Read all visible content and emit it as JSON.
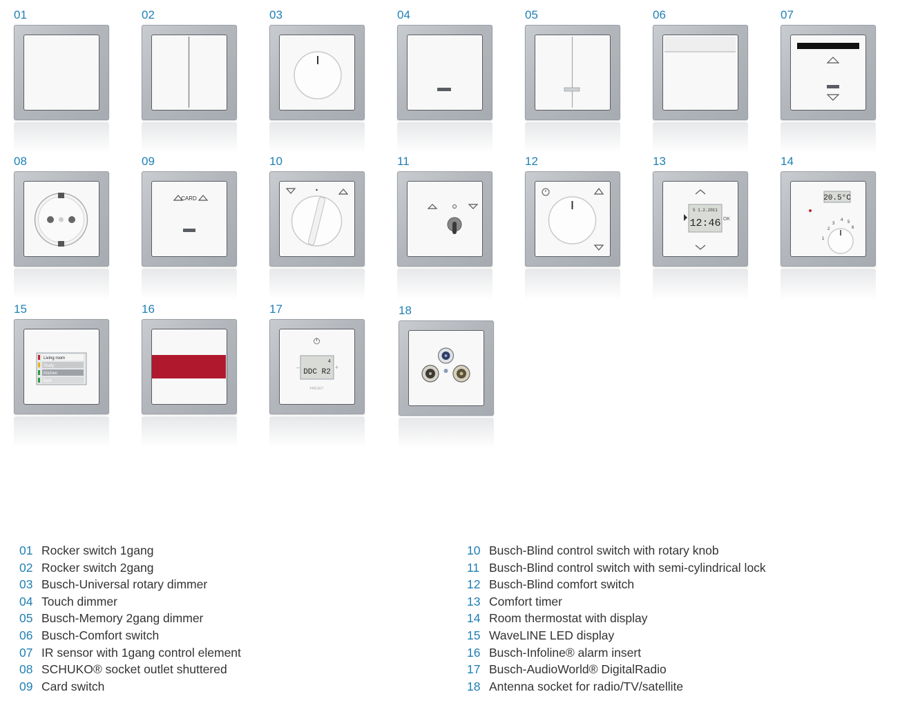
{
  "products": [
    {
      "num": "01",
      "icon": "rocker-1gang-icon"
    },
    {
      "num": "02",
      "icon": "rocker-2gang-icon"
    },
    {
      "num": "03",
      "icon": "rotary-dimmer-icon"
    },
    {
      "num": "04",
      "icon": "touch-dimmer-icon"
    },
    {
      "num": "05",
      "icon": "memory-dimmer-icon"
    },
    {
      "num": "06",
      "icon": "comfort-switch-icon"
    },
    {
      "num": "07",
      "icon": "ir-sensor-icon"
    },
    {
      "num": "08",
      "icon": "socket-outlet-icon"
    },
    {
      "num": "09",
      "icon": "card-switch-icon",
      "label": "CARD"
    },
    {
      "num": "10",
      "icon": "blind-rotary-knob-icon"
    },
    {
      "num": "11",
      "icon": "blind-lock-icon"
    },
    {
      "num": "12",
      "icon": "blind-comfort-switch-icon"
    },
    {
      "num": "13",
      "icon": "comfort-timer-icon",
      "display_date": "5 1.2.2011",
      "display_time": "12:46",
      "ok_label": "OK"
    },
    {
      "num": "14",
      "icon": "room-thermostat-icon",
      "display_temp": "20.5°C",
      "dial_labels": [
        "1",
        "2",
        "3",
        "4",
        "5",
        "6"
      ]
    },
    {
      "num": "15",
      "icon": "waveline-display-icon",
      "rooms": [
        "Living room",
        "Study",
        "Kitchen",
        "Bath"
      ]
    },
    {
      "num": "16",
      "icon": "alarm-insert-icon"
    },
    {
      "num": "17",
      "icon": "digital-radio-icon",
      "display_top": "4",
      "display_bottom": "DDC R2",
      "preset_label": "PRESET"
    },
    {
      "num": "18",
      "icon": "antenna-socket-icon"
    }
  ],
  "legend_left": [
    {
      "num": "01",
      "text": "Rocker switch 1gang"
    },
    {
      "num": "02",
      "text": "Rocker switch 2gang"
    },
    {
      "num": "03",
      "text": "Busch-Universal rotary dimmer"
    },
    {
      "num": "04",
      "text": "Touch dimmer"
    },
    {
      "num": "05",
      "text": "Busch-Memory 2gang dimmer"
    },
    {
      "num": "06",
      "text": "Busch-Comfort switch"
    },
    {
      "num": "07",
      "text": "IR sensor with 1gang control element"
    },
    {
      "num": "08",
      "text": "SCHUKO® socket outlet shuttered"
    },
    {
      "num": "09",
      "text": "Card switch"
    }
  ],
  "legend_right": [
    {
      "num": "10",
      "text": "Busch-Blind control switch with rotary knob"
    },
    {
      "num": "11",
      "text": "Busch-Blind control switch with semi-cylindrical lock"
    },
    {
      "num": "12",
      "text": "Busch-Blind comfort switch"
    },
    {
      "num": "13",
      "text": "Comfort timer"
    },
    {
      "num": "14",
      "text": "Room thermostat with display"
    },
    {
      "num": "15",
      "text": "WaveLINE LED display"
    },
    {
      "num": "16",
      "text": "Busch-Infoline® alarm insert"
    },
    {
      "num": "17",
      "text": "Busch-AudioWorld® DigitalRadio"
    },
    {
      "num": "18",
      "text": "Antenna socket for radio/TV/satellite"
    }
  ],
  "colors": {
    "accent_number": "#1f7fb5",
    "alarm_red": "#b0182e",
    "plate": "#b3b7bc"
  }
}
